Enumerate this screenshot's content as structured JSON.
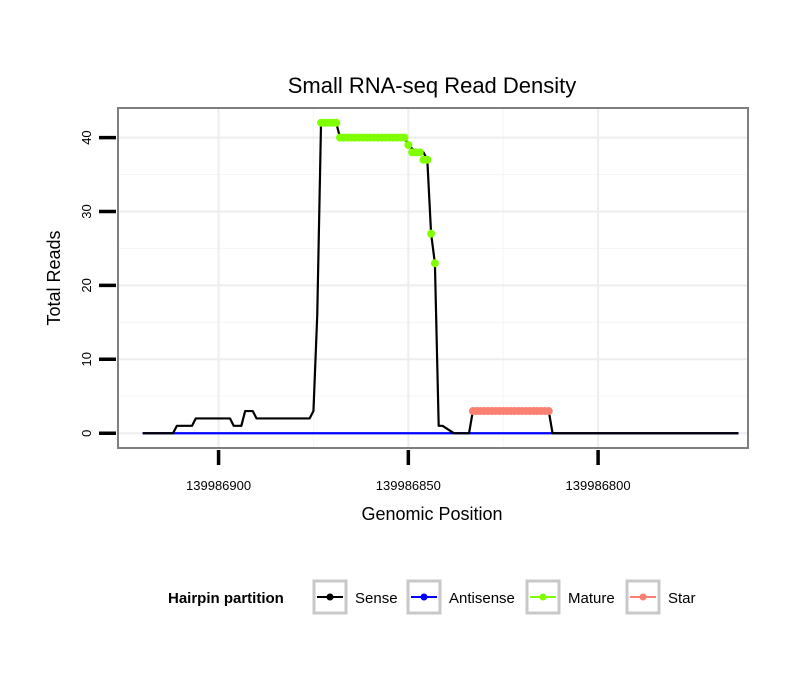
{
  "chart_data": {
    "type": "line",
    "title": "Small RNA-seq Read Density",
    "xlabel": "Genomic Position",
    "ylabel": "Total Reads",
    "xlim": [
      139986926.5,
      139986760.5
    ],
    "ylim": [
      -2,
      44
    ],
    "x_reversed": true,
    "grid": true,
    "x_ticks": [
      139986900,
      139986850,
      139986800
    ],
    "x_tick_labels": [
      "139986900",
      "139986850",
      "139986800"
    ],
    "y_ticks": [
      0,
      10,
      20,
      30,
      40
    ],
    "y_tick_labels": [
      "0",
      "10",
      "20",
      "30",
      "40"
    ],
    "legend": {
      "title": "Hairpin partition",
      "placement": "bottom",
      "entries": [
        {
          "name": "Sense",
          "color": "#000000"
        },
        {
          "name": "Antisense",
          "color": "#0000ff"
        },
        {
          "name": "Mature",
          "color": "#7fff00"
        },
        {
          "name": "Star",
          "color": "#fa8072"
        }
      ]
    },
    "series": [
      {
        "name": "Sense",
        "color": "#000000",
        "markers": false,
        "x": [
          139986920,
          139986912,
          139986911,
          139986907,
          139986906,
          139986897,
          139986896,
          139986894,
          139986893,
          139986891,
          139986890,
          139986888,
          139986887,
          139986876,
          139986875,
          139986874,
          139986873,
          139986871,
          139986869,
          139986868,
          139986867,
          139986851,
          139986850,
          139986848,
          139986846,
          139986845,
          139986844,
          139986843,
          139986842,
          139986841,
          139986838,
          139986837,
          139986834,
          139986833,
          139986820,
          139986819,
          139986813,
          139986812,
          139986800,
          139986763
        ],
        "y": [
          0,
          0,
          1,
          1,
          2,
          2,
          1,
          1,
          3,
          3,
          2,
          2,
          2,
          2,
          3,
          16,
          42,
          42,
          42,
          40,
          40,
          40,
          39,
          38,
          38,
          37,
          27,
          23,
          1,
          1,
          0,
          0,
          0,
          3,
          3,
          3,
          3,
          0,
          0,
          0
        ]
      },
      {
        "name": "Antisense",
        "color": "#0000ff",
        "markers": false,
        "x": [
          139986920,
          139986763
        ],
        "y": [
          0,
          0
        ]
      },
      {
        "name": "Mature",
        "color": "#7fff00",
        "markers": true,
        "x": [
          139986873,
          139986872,
          139986871,
          139986870,
          139986869,
          139986868,
          139986867,
          139986866,
          139986865,
          139986864,
          139986863,
          139986862,
          139986861,
          139986860,
          139986859,
          139986858,
          139986857,
          139986856,
          139986855,
          139986854,
          139986853,
          139986852,
          139986851,
          139986850,
          139986849,
          139986848,
          139986847,
          139986846,
          139986845,
          139986844,
          139986843
        ],
        "y": [
          42,
          42,
          42,
          42,
          42,
          40,
          40,
          40,
          40,
          40,
          40,
          40,
          40,
          40,
          40,
          40,
          40,
          40,
          40,
          40,
          40,
          40,
          40,
          39,
          38,
          38,
          38,
          37,
          37,
          27,
          23
        ]
      },
      {
        "name": "Star",
        "color": "#fa8072",
        "markers": true,
        "x": [
          139986833,
          139986832,
          139986831,
          139986830,
          139986829,
          139986828,
          139986827,
          139986826,
          139986825,
          139986824,
          139986823,
          139986822,
          139986821,
          139986820,
          139986819,
          139986818,
          139986817,
          139986816,
          139986815,
          139986814,
          139986813
        ],
        "y": [
          3,
          3,
          3,
          3,
          3,
          3,
          3,
          3,
          3,
          3,
          3,
          3,
          3,
          3,
          3,
          3,
          3,
          3,
          3,
          3,
          3
        ]
      }
    ]
  }
}
